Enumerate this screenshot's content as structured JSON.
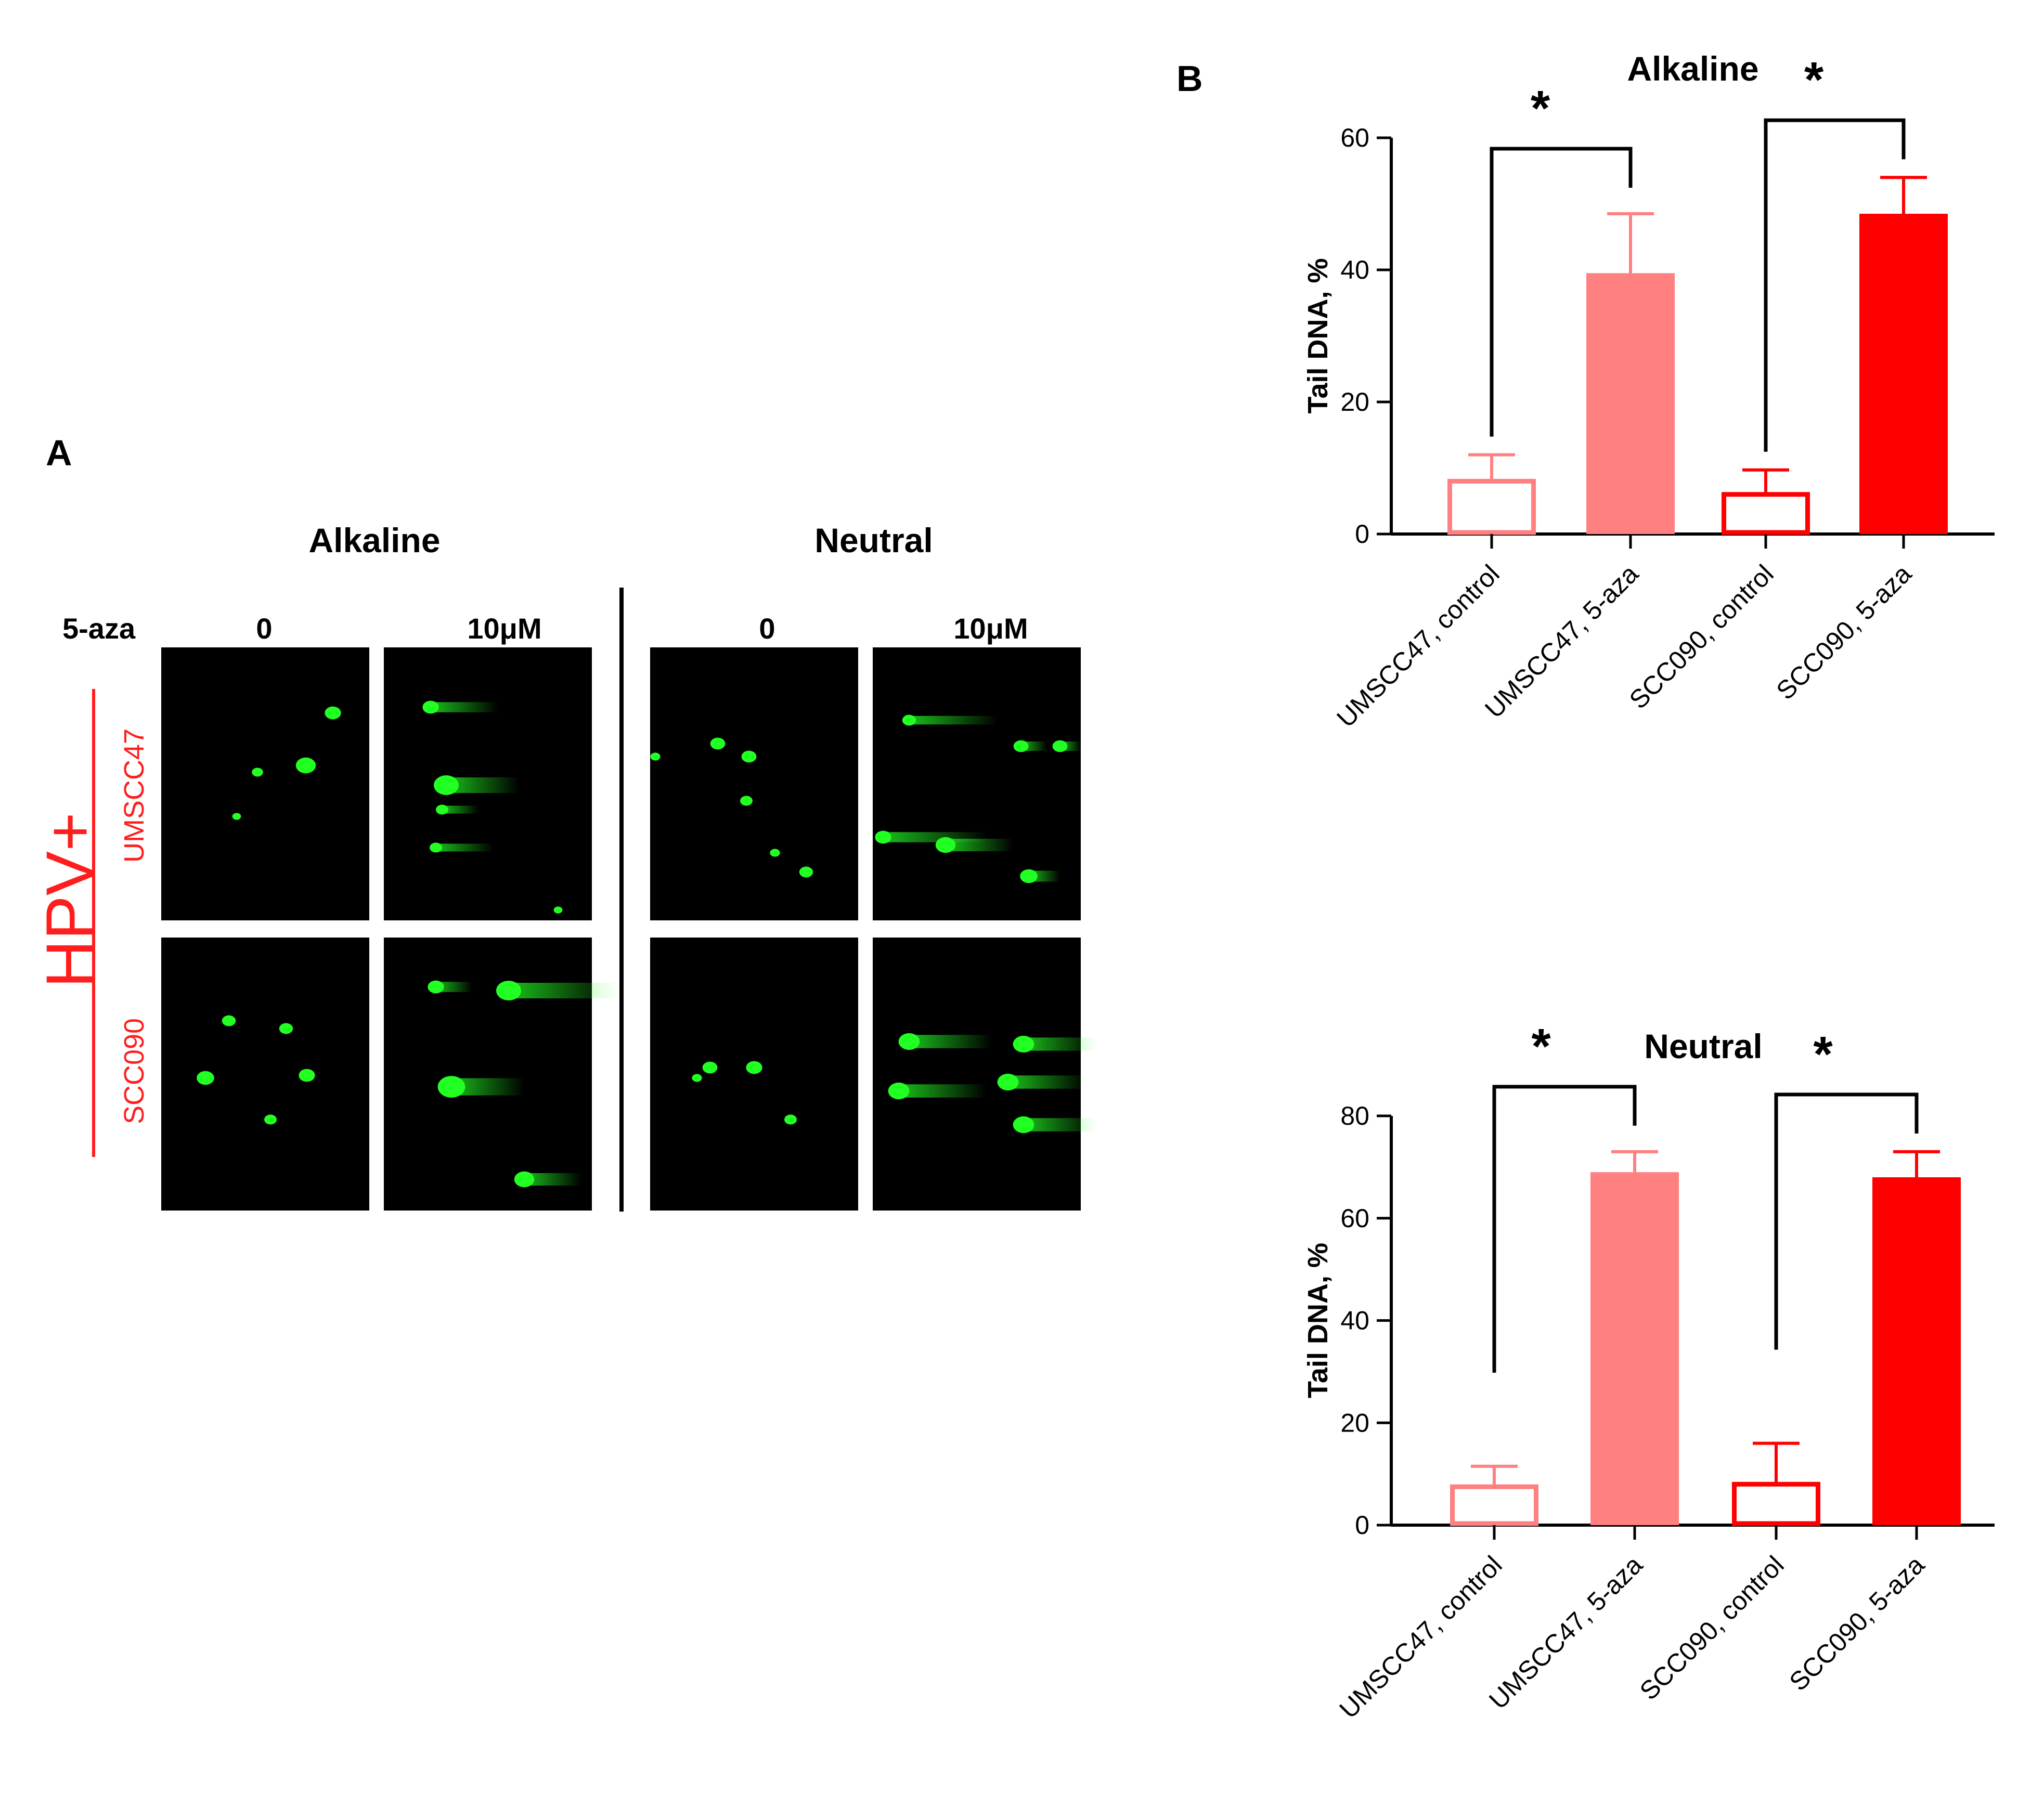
{
  "panel_a": {
    "letter": "A",
    "assay_headers": [
      "Alkaline",
      "Neutral"
    ],
    "treatment_label": "5-aza",
    "doses": [
      "0",
      "10μM",
      "0",
      "10μM"
    ],
    "group_label": "HPV+",
    "cell_lines": [
      "UMSCC47",
      "SCC090"
    ],
    "colors": {
      "label": "#ff1e1e",
      "comet": "#22ff22",
      "background": "#000000"
    }
  },
  "panel_b": {
    "letter": "B"
  },
  "chart_data": [
    {
      "type": "bar",
      "title": "Alkaline",
      "ylabel": "Tail DNA, %",
      "categories": [
        "UMSCC47, control",
        "UMSCC47, 5-aza",
        "SCC090, control",
        "SCC090, 5-aza"
      ],
      "values": [
        8,
        39.5,
        6,
        48.5
      ],
      "errors": [
        4,
        9,
        3.7,
        5.5
      ],
      "fill": [
        "none",
        "#ff8080",
        "none",
        "#ff0000"
      ],
      "stroke": [
        "#ff8080",
        "#ff8080",
        "#ff0000",
        "#ff0000"
      ],
      "ylim": [
        0,
        60
      ],
      "yticks": [
        "0",
        "20",
        "40",
        "60"
      ],
      "significance": [
        {
          "pair": [
            0,
            1
          ],
          "label": "*"
        },
        {
          "pair": [
            2,
            3
          ],
          "label": "*"
        }
      ]
    },
    {
      "type": "bar",
      "title": "Neutral",
      "ylabel": "Tail DNA, %",
      "categories": [
        "UMSCC47, control",
        "UMSCC47, 5-aza",
        "SCC090, control",
        "SCC090, 5-aza"
      ],
      "values": [
        7.5,
        69,
        8,
        68
      ],
      "errors": [
        4,
        4,
        8,
        5
      ],
      "fill": [
        "none",
        "#ff8080",
        "none",
        "#ff0000"
      ],
      "stroke": [
        "#ff8080",
        "#ff8080",
        "#ff0000",
        "#ff0000"
      ],
      "ylim": [
        0,
        80
      ],
      "yticks": [
        "0",
        "20",
        "40",
        "60",
        "80"
      ],
      "significance": [
        {
          "pair": [
            0,
            1
          ],
          "label": "*"
        },
        {
          "pair": [
            2,
            3
          ],
          "label": "*"
        }
      ]
    }
  ]
}
